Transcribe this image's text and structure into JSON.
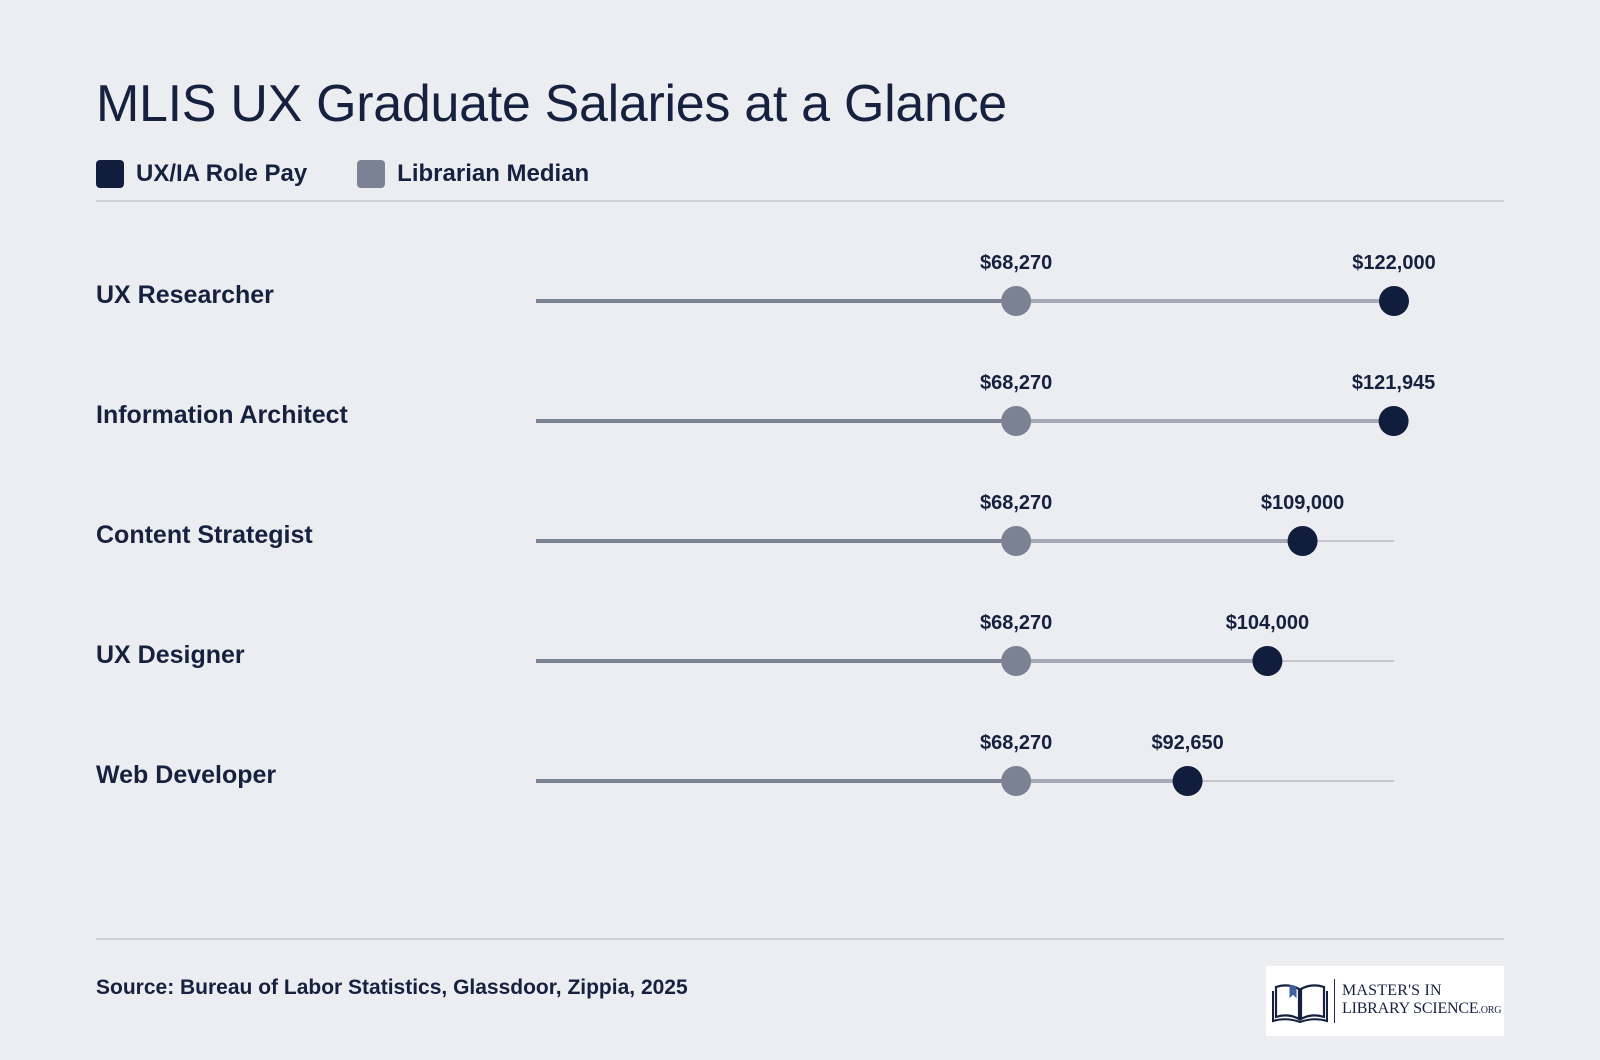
{
  "title": "MLIS UX Graduate Salaries at a Glance",
  "legend": [
    {
      "label": "UX/IA Role Pay",
      "color": "#111d3d"
    },
    {
      "label": "Librarian Median",
      "color": "#7b8294"
    }
  ],
  "colors": {
    "role": "#111d3d",
    "median": "#7b8294",
    "track": "#c4c7cf",
    "background": "#ecedf1"
  },
  "chart_data": {
    "type": "dot",
    "title": "MLIS UX Graduate Salaries at a Glance",
    "xlim": [
      0,
      122000
    ],
    "grid": false,
    "legend_position": "top-left",
    "categories": [
      "UX Researcher",
      "Information Architect",
      "Content Strategist",
      "UX Designer",
      "Web Developer"
    ],
    "series": [
      {
        "name": "UX/IA Role Pay",
        "values": [
          122000,
          121945,
          109000,
          104000,
          92650
        ]
      },
      {
        "name": "Librarian Median",
        "values": [
          68270,
          68270,
          68270,
          68270,
          68270
        ]
      }
    ],
    "value_labels": {
      "role": [
        "$122,000",
        "$121,945",
        "$109,000",
        "$104,000",
        "$92,650"
      ],
      "median": [
        "$68,270",
        "$68,270",
        "$68,270",
        "$68,270",
        "$68,270"
      ]
    }
  },
  "source": "Source: Bureau of Labor Statistics, Glassdoor, Zippia, 2025",
  "logo": {
    "line1": "MASTER'S IN",
    "line2": "LIBRARY SCIENCE",
    "suffix": ".ORG"
  }
}
